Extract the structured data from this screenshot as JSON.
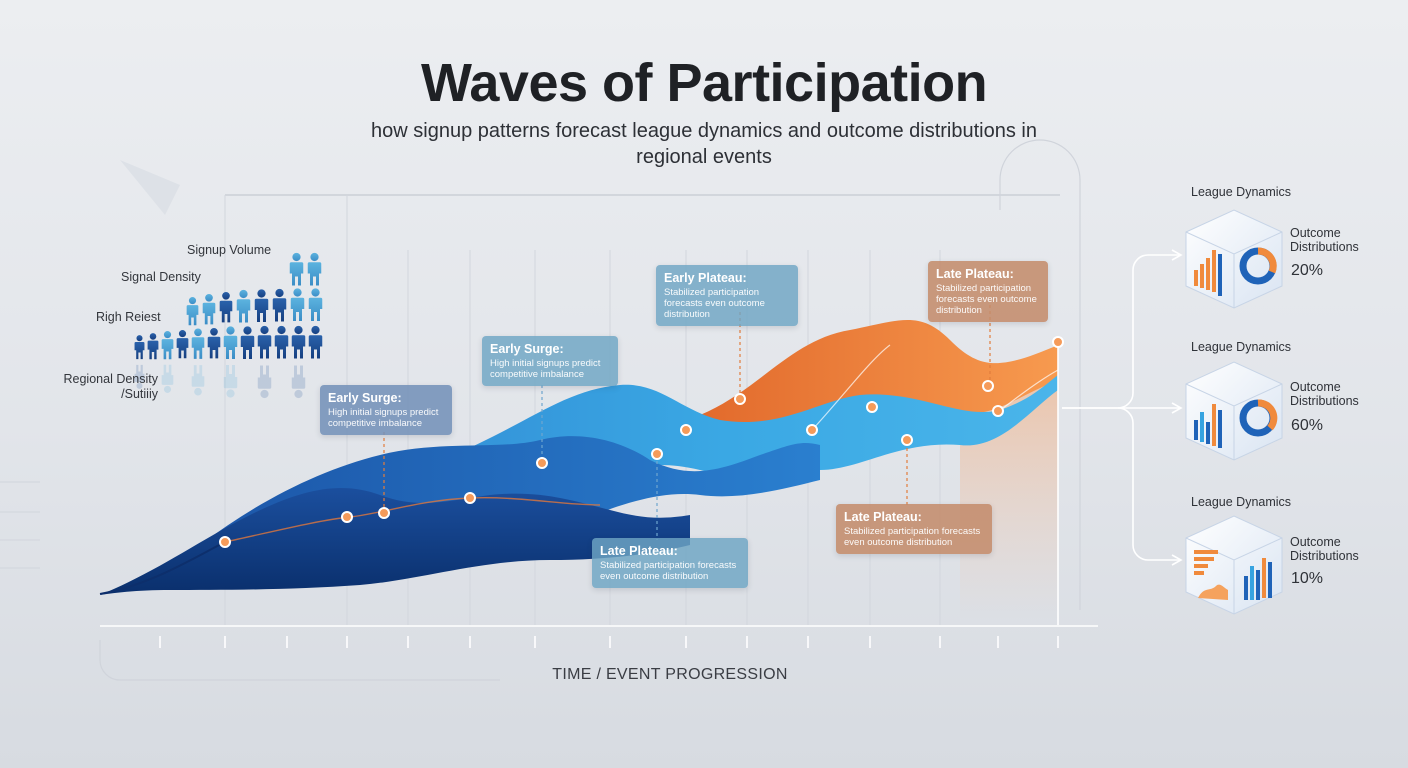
{
  "header": {
    "title": "Waves of Participation",
    "subtitle": "how signup patterns forecast league dynamics and outcome distributions in regional events"
  },
  "axis": {
    "x_label": "TIME / EVENT PROGRESSION"
  },
  "people_legend": {
    "labels": [
      "Signup Volume",
      "Signal Density",
      "Righ Reiest",
      "Regional Density /Sutiiiy"
    ]
  },
  "callouts": [
    {
      "id": "early-surge-1",
      "title": "Early Surge:",
      "body": "High initial signups predict competitive imbalance",
      "tone": "blue"
    },
    {
      "id": "early-surge-2",
      "title": "Early Surge:",
      "body": "High initial signups predict competitive imbalance",
      "tone": "sky"
    },
    {
      "id": "early-plateau",
      "title": "Early Plateau:",
      "body": "Stabilized participation forecasts even outcome distribution",
      "tone": "sky"
    },
    {
      "id": "late-plateau-1",
      "title": "Late Plateau:",
      "body": "Stabilized participation forecasts even outcome distribution",
      "tone": "sky"
    },
    {
      "id": "late-plateau-2",
      "title": "Late Plateau:",
      "body": "Stabilized participation forecasts even outcome distribution",
      "tone": "orange"
    },
    {
      "id": "late-plateau-3",
      "title": "Late Plateau:",
      "body": "Stabilized participation forecasts even outcome distribution",
      "tone": "orange"
    }
  ],
  "panels": [
    {
      "league_label": "League Dynamics",
      "outcome_label": "Outcome Distributions",
      "percent": "20%"
    },
    {
      "league_label": "League Dynamics",
      "outcome_label": "Outcome Distributions",
      "percent": "60%"
    },
    {
      "league_label": "League Dynamics",
      "outcome_label": "Outcome Distributions",
      "percent": "10%"
    }
  ],
  "colors": {
    "wave_dark": "#0e3d86",
    "wave_mid": "#1f63b8",
    "wave_light": "#36a3e0",
    "wave_orange": "#f08a3c",
    "marker": "#f07c2e",
    "people_dark": "#1e4f96",
    "people_light": "#4da7d6"
  }
}
